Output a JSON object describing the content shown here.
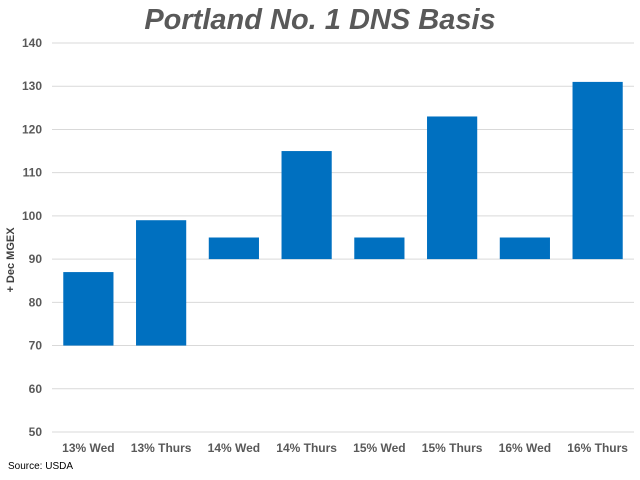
{
  "chart_data": {
    "type": "bar",
    "title": "Portland No. 1 DNS Basis",
    "ylabel": "+ Dec MGEX",
    "xlabel": "",
    "categories": [
      "13% Wed",
      "13% Thurs",
      "14% Wed",
      "14% Thurs",
      "15% Wed",
      "15% Thurs",
      "16% Wed",
      "16% Thurs"
    ],
    "series": [
      {
        "low": [
          70,
          70,
          90,
          90,
          90,
          90,
          90,
          90
        ],
        "high": [
          87,
          99,
          95,
          115,
          95,
          123,
          95,
          131
        ]
      }
    ],
    "ylim": [
      50,
      140
    ],
    "yticks": [
      50,
      60,
      70,
      80,
      90,
      100,
      110,
      120,
      130,
      140
    ],
    "grid": true,
    "bar_color": "#0070C0",
    "grid_color": "#D9D9D9",
    "source": "Source: USDA"
  }
}
